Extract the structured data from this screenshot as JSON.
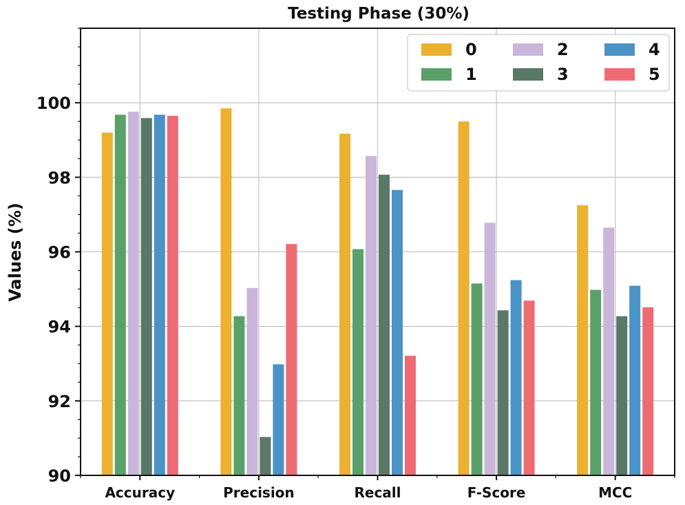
{
  "chart_data": {
    "type": "bar",
    "title": "Testing Phase (30%)",
    "xlabel": "",
    "ylabel": "Values (%)",
    "ylim": [
      90,
      102
    ],
    "yticks": [
      90,
      92,
      94,
      96,
      98,
      100
    ],
    "grid": true,
    "legend_position": "top-right",
    "categories": [
      "Accuracy",
      "Precision",
      "Recall",
      "F-Score",
      "MCC"
    ],
    "series": [
      {
        "name": "0",
        "color": "#ebb12f",
        "values": [
          99.2,
          99.85,
          99.17,
          99.5,
          97.25
        ]
      },
      {
        "name": "1",
        "color": "#5aa169",
        "values": [
          99.68,
          94.27,
          96.07,
          95.15,
          94.98
        ]
      },
      {
        "name": "2",
        "color": "#c9b6da",
        "values": [
          99.76,
          95.03,
          98.57,
          96.78,
          96.65
        ]
      },
      {
        "name": "3",
        "color": "#5a7868",
        "values": [
          99.59,
          91.03,
          98.07,
          94.43,
          94.27
        ]
      },
      {
        "name": "4",
        "color": "#4a93c6",
        "values": [
          99.68,
          92.98,
          97.66,
          95.24,
          95.09
        ]
      },
      {
        "name": "5",
        "color": "#ee6b74",
        "values": [
          99.65,
          96.21,
          93.21,
          94.69,
          94.51
        ]
      }
    ]
  }
}
